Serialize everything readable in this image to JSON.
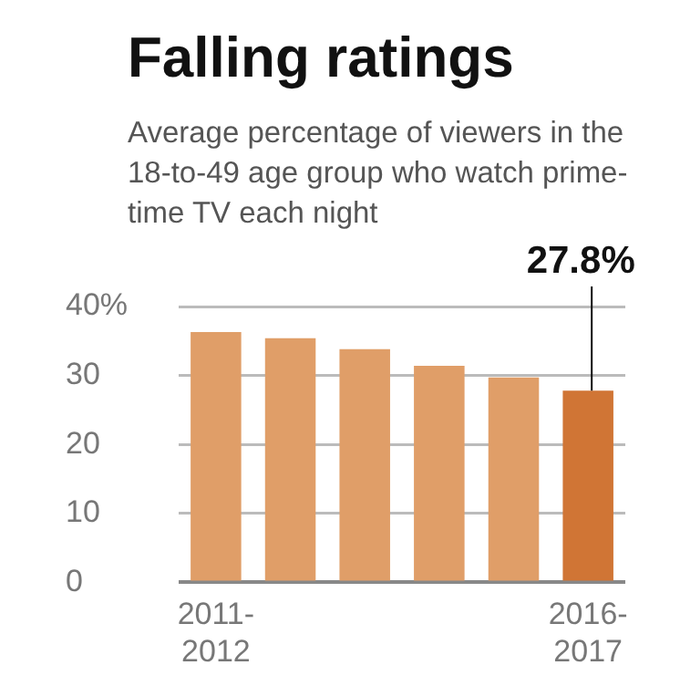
{
  "chart_data": {
    "type": "bar",
    "title": "Falling ratings",
    "subtitle": "Average percentage of viewers in the 18-to-49 age group who watch prime-time TV each night",
    "categories": [
      "2011-2012",
      null,
      null,
      null,
      null,
      "2016-2017"
    ],
    "values": [
      36.3,
      35.4,
      33.8,
      31.4,
      29.7,
      27.8
    ],
    "colors": [
      "#e09e68",
      "#e09e68",
      "#e09e68",
      "#e09e68",
      "#e09e68",
      "#d07535"
    ],
    "ylim": [
      0,
      40
    ],
    "yticks": [
      0,
      10,
      20,
      30,
      {
        "value": 40,
        "label": "40%"
      }
    ],
    "grid": "y",
    "annotations": [
      {
        "text": "27.8%",
        "x": "2016-2017",
        "y": 27.8
      }
    ]
  }
}
